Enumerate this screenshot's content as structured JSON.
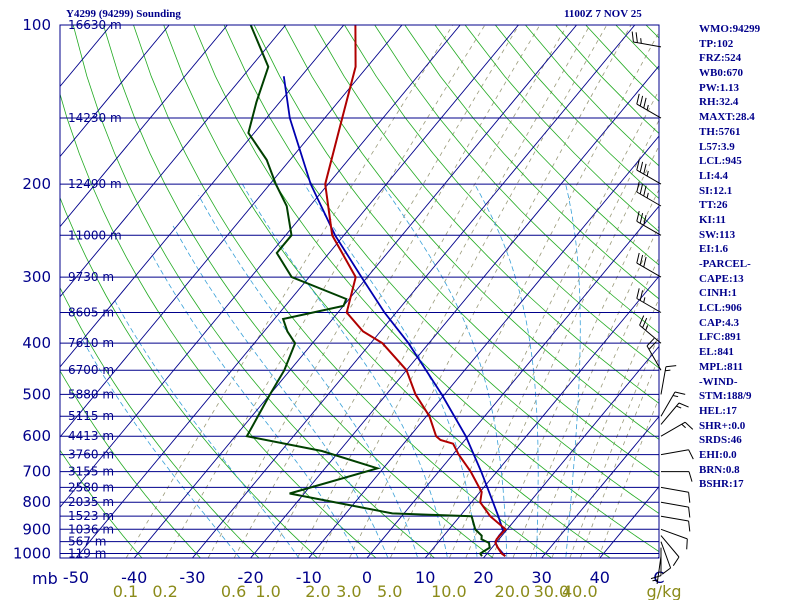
{
  "header": {
    "station": "Y4299 (94299) Sounding",
    "time": "1100Z  7 NOV 25"
  },
  "stats": [
    "WMO:94299",
    "TP:102",
    "FRZ:524",
    "WB0:670",
    "PW:1.13",
    "RH:32.4",
    "MAXT:28.4",
    "TH:5761",
    "L57:3.9",
    "LCL:945",
    "LI:4.4",
    "SI:12.1",
    "TT:26",
    "KI:11",
    "SW:113",
    "EI:1.6",
    "-PARCEL-",
    "CAPE:13",
    "CINH:1",
    "LCL:906",
    "CAP:4.3",
    "LFC:891",
    "EL:841",
    "MPL:811",
    "-WIND-",
    "STM:188/9",
    "HEL:17",
    "SHR+:0.0",
    "SRDS:46",
    "EHI:0.0",
    "BRN:0.8",
    "BSHR:17"
  ],
  "colors": {
    "background": "#ffffff",
    "isobar": "#00008b",
    "isotherm": "#00008b",
    "dry_adiabat": "#22aa22",
    "moist_adiabat": "#38a0d8",
    "mixing_ratio": "#9a9a7a",
    "temperature": "#b00000",
    "dewpoint": "#004000",
    "parcel": "#0000b0",
    "wind": "#000000"
  },
  "chart_data": {
    "type": "skew-t",
    "x_unit": "C",
    "pressure_label": "mb",
    "pressure_levels": [
      100,
      200,
      300,
      400,
      500,
      600,
      700,
      800,
      900,
      1000
    ],
    "temp_ticks": [
      "-50",
      "-40",
      "-30",
      "-20",
      "-10",
      "0",
      "10",
      "20",
      "30",
      "40"
    ],
    "mixing_ratio_ticks": [
      "0.1",
      "0.2",
      "0.6",
      "1.0",
      "2.0",
      "3.0",
      "5.0",
      "10.0",
      "20.0",
      "30.0",
      "40.0"
    ],
    "mixing_ratio_unit": "g/kg",
    "height_levels": [
      {
        "p": 100,
        "label": "16630 m"
      },
      {
        "p": 150,
        "label": "14230 m"
      },
      {
        "p": 200,
        "label": "12490 m"
      },
      {
        "p": 250,
        "label": "11000 m"
      },
      {
        "p": 300,
        "label": "9730 m"
      },
      {
        "p": 350,
        "label": "8605 m"
      },
      {
        "p": 400,
        "label": "7610 m"
      },
      {
        "p": 450,
        "label": "6700 m"
      },
      {
        "p": 500,
        "label": "5880 m"
      },
      {
        "p": 550,
        "label": "5115 m"
      },
      {
        "p": 600,
        "label": "4413 m"
      },
      {
        "p": 650,
        "label": "3760 m"
      },
      {
        "p": 700,
        "label": "3155 m"
      },
      {
        "p": 750,
        "label": "2580 m"
      },
      {
        "p": 800,
        "label": "2035 m"
      },
      {
        "p": 850,
        "label": "1523 m"
      },
      {
        "p": 900,
        "label": "1036 m"
      },
      {
        "p": 950,
        "label": "567 m"
      },
      {
        "p": 1000,
        "label": "119 m"
      }
    ],
    "temperature": [
      [
        1012,
        23.5
      ],
      [
        1000,
        22.5
      ],
      [
        975,
        21.0
      ],
      [
        955,
        19.9
      ],
      [
        940,
        19.6
      ],
      [
        925,
        19.6
      ],
      [
        900,
        19.7
      ],
      [
        850,
        15.2
      ],
      [
        800,
        11.5
      ],
      [
        765,
        10.3
      ],
      [
        750,
        9.2
      ],
      [
        700,
        5.5
      ],
      [
        650,
        1.0
      ],
      [
        620,
        -1.5
      ],
      [
        610,
        -4.2
      ],
      [
        600,
        -5.5
      ],
      [
        550,
        -9.5
      ],
      [
        500,
        -15.0
      ],
      [
        450,
        -20.0
      ],
      [
        400,
        -28.0
      ],
      [
        380,
        -33.0
      ],
      [
        350,
        -38.5
      ],
      [
        300,
        -42.0
      ],
      [
        250,
        -52.0
      ],
      [
        200,
        -60.5
      ],
      [
        150,
        -67.0
      ],
      [
        120,
        -72.0
      ],
      [
        100,
        -78.0
      ]
    ],
    "dewpoint": [
      [
        1012,
        19.5
      ],
      [
        1000,
        18.8
      ],
      [
        975,
        19.6
      ],
      [
        955,
        18.8
      ],
      [
        940,
        17.0
      ],
      [
        925,
        16.5
      ],
      [
        900,
        14.5
      ],
      [
        850,
        12.0
      ],
      [
        845,
        4.5
      ],
      [
        840,
        -2.0
      ],
      [
        770,
        -22.5
      ],
      [
        690,
        -11.0
      ],
      [
        640,
        -23.0
      ],
      [
        600,
        -38.0
      ],
      [
        500,
        -40.0
      ],
      [
        450,
        -41.0
      ],
      [
        400,
        -43.0
      ],
      [
        380,
        -46.0
      ],
      [
        360,
        -48.5
      ],
      [
        340,
        -40.0
      ],
      [
        330,
        -40.5
      ],
      [
        300,
        -53.0
      ],
      [
        270,
        -59.0
      ],
      [
        250,
        -59.0
      ],
      [
        220,
        -64.0
      ],
      [
        200,
        -69.0
      ],
      [
        180,
        -74.0
      ],
      [
        160,
        -81.0
      ],
      [
        140,
        -84.0
      ],
      [
        120,
        -87.0
      ],
      [
        100,
        -96.0
      ]
    ],
    "parcel": [
      [
        1012,
        23.5
      ],
      [
        975,
        21.0
      ],
      [
        950,
        19.7
      ],
      [
        925,
        19.5
      ],
      [
        906,
        19.5
      ],
      [
        850,
        16.6
      ],
      [
        800,
        13.7
      ],
      [
        700,
        7.3
      ],
      [
        600,
        -0.4
      ],
      [
        500,
        -10.5
      ],
      [
        400,
        -23.5
      ],
      [
        350,
        -32.0
      ],
      [
        300,
        -41.0
      ],
      [
        250,
        -51.5
      ],
      [
        200,
        -63.0
      ],
      [
        150,
        -76.0
      ],
      [
        125,
        -83.0
      ]
    ],
    "wind_barbs": [
      {
        "p": 1012,
        "dir": 188,
        "spd": 5
      },
      {
        "p": 975,
        "dir": 180,
        "spd": 10
      },
      {
        "p": 950,
        "dir": 160,
        "spd": 10
      },
      {
        "p": 925,
        "dir": 140,
        "spd": 10
      },
      {
        "p": 900,
        "dir": 110,
        "spd": 10
      },
      {
        "p": 850,
        "dir": 100,
        "spd": 10
      },
      {
        "p": 800,
        "dir": 100,
        "spd": 10
      },
      {
        "p": 750,
        "dir": 100,
        "spd": 10
      },
      {
        "p": 700,
        "dir": 90,
        "spd": 10
      },
      {
        "p": 650,
        "dir": 80,
        "spd": 10
      },
      {
        "p": 600,
        "dir": 60,
        "spd": 15
      },
      {
        "p": 570,
        "dir": 40,
        "spd": 15
      },
      {
        "p": 550,
        "dir": 30,
        "spd": 15
      },
      {
        "p": 500,
        "dir": 10,
        "spd": 15
      },
      {
        "p": 450,
        "dir": 330,
        "spd": 20
      },
      {
        "p": 400,
        "dir": 310,
        "spd": 25
      },
      {
        "p": 350,
        "dir": 300,
        "spd": 25
      },
      {
        "p": 300,
        "dir": 300,
        "spd": 30
      },
      {
        "p": 250,
        "dir": 300,
        "spd": 30
      },
      {
        "p": 220,
        "dir": 300,
        "spd": 35
      },
      {
        "p": 200,
        "dir": 300,
        "spd": 35
      },
      {
        "p": 150,
        "dir": 300,
        "spd": 35
      },
      {
        "p": 110,
        "dir": 280,
        "spd": 25
      }
    ]
  }
}
